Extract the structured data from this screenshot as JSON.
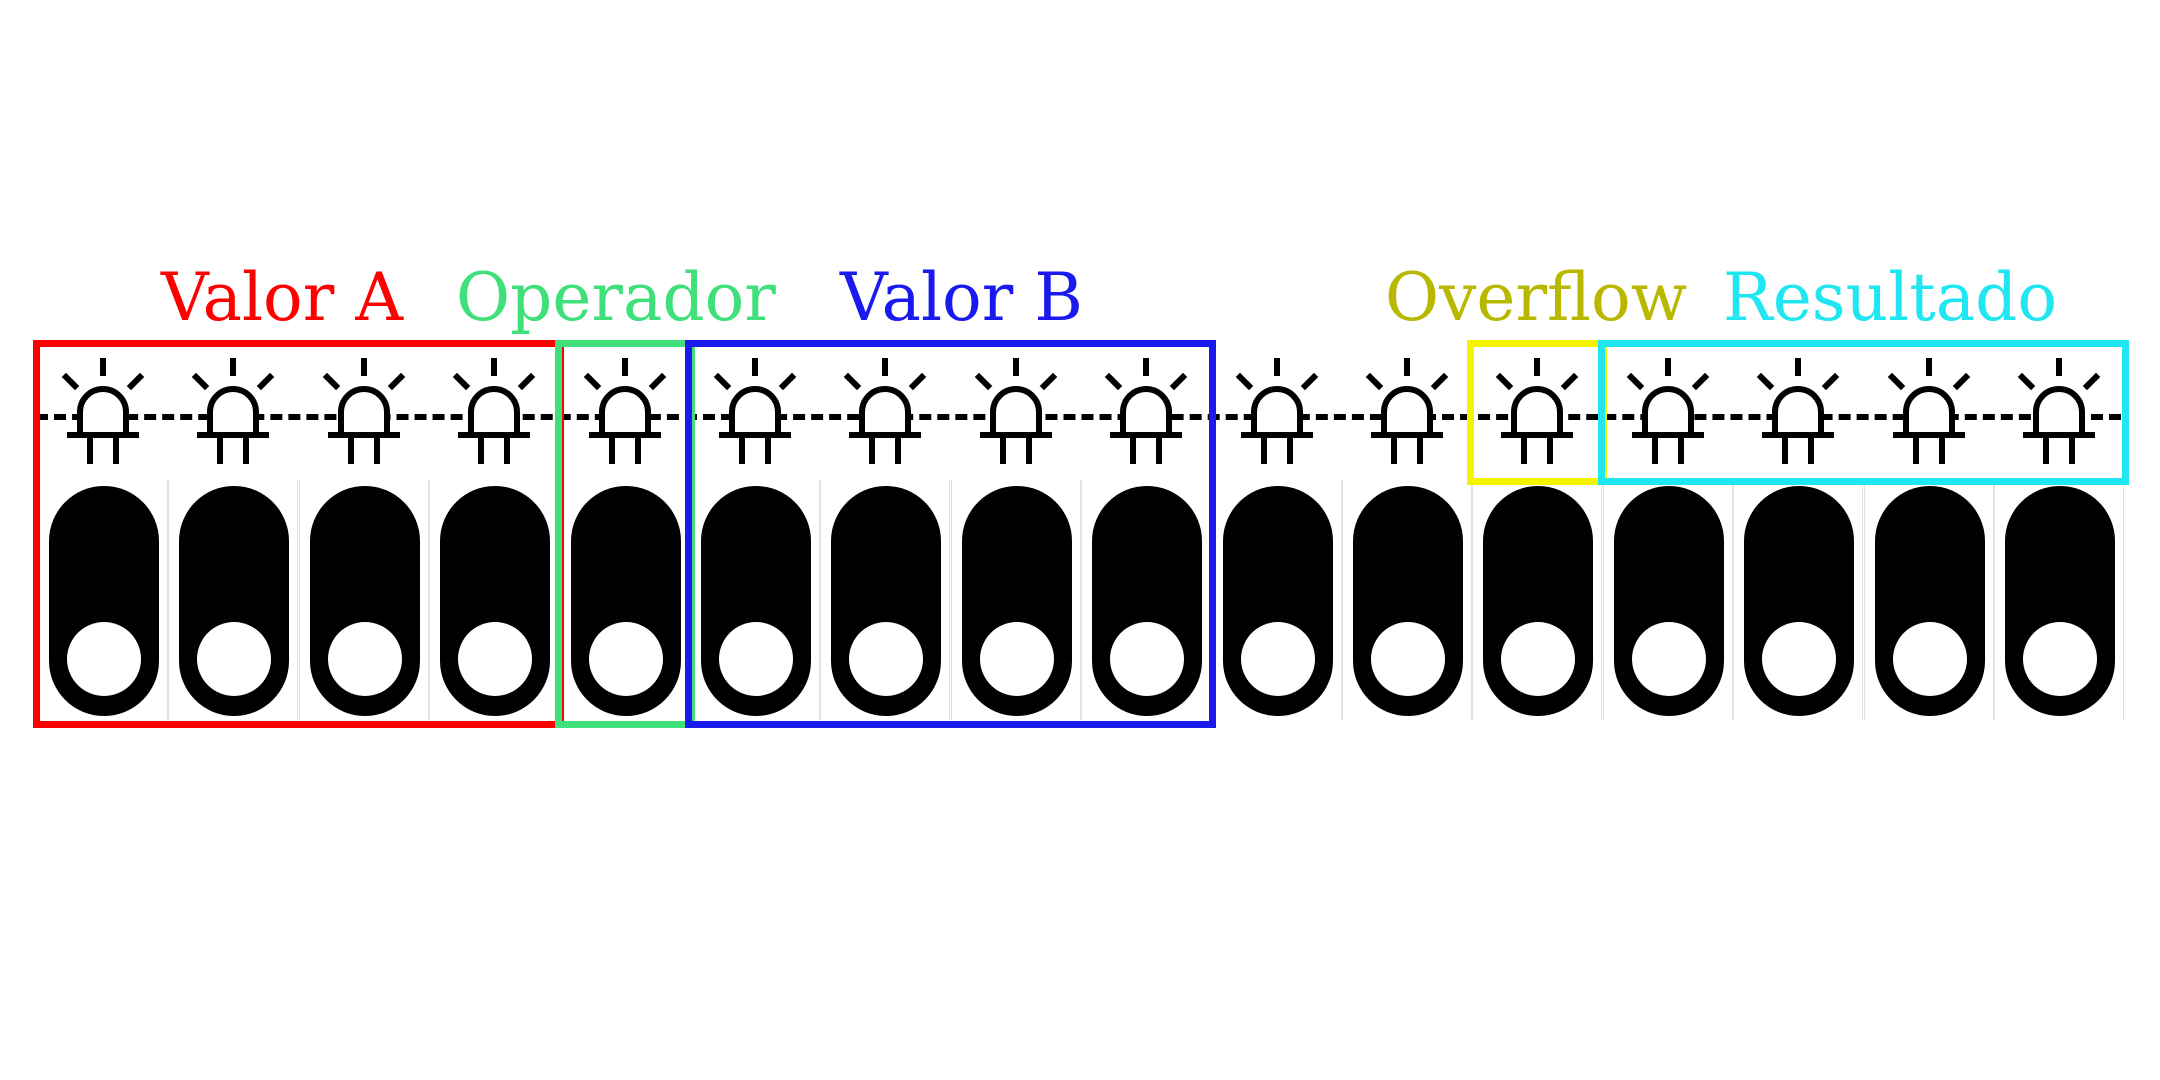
{
  "groups": [
    {
      "label": "Valor A",
      "color": "#ff0000",
      "leds": [
        0,
        1,
        2,
        3
      ]
    },
    {
      "label": "Operador",
      "color": "#3fe07a",
      "leds": [
        4
      ]
    },
    {
      "label": "Valor B",
      "color": "#1a1aee",
      "leds": [
        5,
        6,
        7,
        8
      ]
    },
    {
      "label": "Overflow",
      "color": "#b8b800",
      "box_color": "#f4f400",
      "leds": [
        11
      ]
    },
    {
      "label": "Resultado",
      "color": "#1fe6f0",
      "leds": [
        12,
        13,
        14,
        15
      ]
    }
  ],
  "led_count": 16,
  "switches": [
    {
      "state": "off"
    },
    {
      "state": "off"
    },
    {
      "state": "off"
    },
    {
      "state": "off"
    },
    {
      "state": "off"
    },
    {
      "state": "off"
    },
    {
      "state": "off"
    },
    {
      "state": "off"
    },
    {
      "state": "off"
    },
    {
      "state": "off"
    },
    {
      "state": "off"
    },
    {
      "state": "off"
    },
    {
      "state": "off"
    },
    {
      "state": "off"
    },
    {
      "state": "off"
    },
    {
      "state": "off"
    }
  ],
  "icon": "led-icon"
}
